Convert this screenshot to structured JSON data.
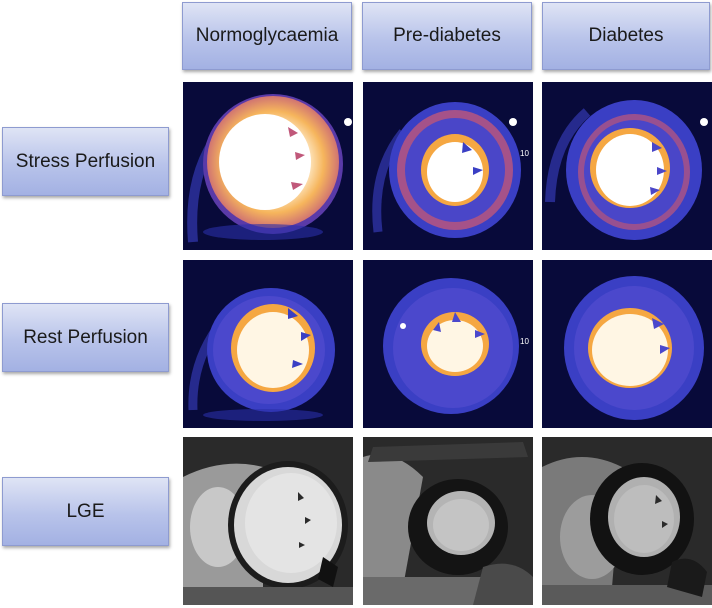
{
  "columns": [
    "Normoglycaemia",
    "Pre-diabetes",
    "Diabetes"
  ],
  "rows": [
    "Stress Perfusion",
    "Rest Perfusion",
    "LGE"
  ],
  "panel_text": {
    "prediabetes_stress_marker": "10",
    "prediabetes_rest_marker": "10"
  },
  "colors": {
    "label_fill_top": "#dfe4f5",
    "label_fill_bottom": "#a3b1e3",
    "perfusion_background": "#080a3a",
    "perfusion_myocardium": "#3a3fc4",
    "perfusion_hyperenhanced": "#f5a742",
    "blood_pool": "#fff6e4"
  }
}
